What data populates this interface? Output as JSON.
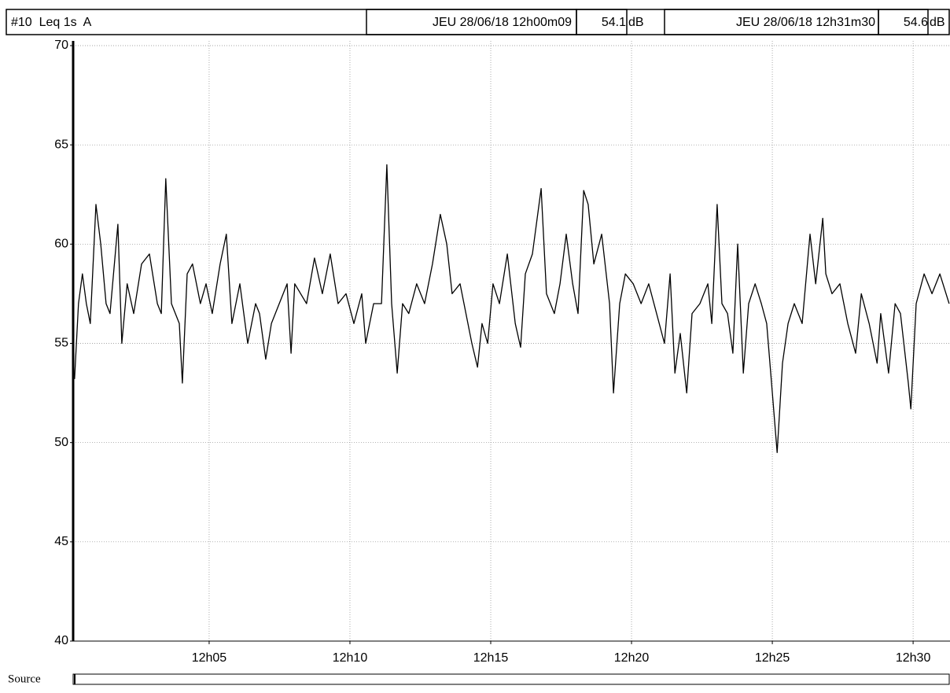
{
  "header": {
    "label": "#10  Leq 1s  A",
    "start_time": "JEU 28/06/18 12h00m09",
    "start_value": 54.1,
    "start_unit": "dB",
    "end_time": "JEU 28/06/18 12h31m30",
    "end_value": 54.6,
    "end_unit": "dB"
  },
  "footer": {
    "label": "Source"
  },
  "chart_data": {
    "type": "line",
    "color": "#000000",
    "grid": true,
    "xlim": [
      0.17,
      31.31
    ],
    "xticks": [
      {
        "value": 5,
        "label": "12h05"
      },
      {
        "value": 10,
        "label": "12h10"
      },
      {
        "value": 15,
        "label": "12h15"
      },
      {
        "value": 20,
        "label": "12h20"
      },
      {
        "value": 25,
        "label": "12h25"
      },
      {
        "value": 30,
        "label": "12h30"
      }
    ],
    "ylim": [
      40,
      70
    ],
    "yticks": [
      40,
      45,
      50,
      55,
      60,
      65,
      70
    ],
    "x": [
      0.22,
      0.36,
      0.5,
      0.64,
      0.78,
      0.98,
      1.15,
      1.34,
      1.48,
      1.76,
      1.9,
      2.09,
      2.32,
      2.6,
      2.88,
      3.16,
      3.3,
      3.46,
      3.66,
      3.94,
      4.05,
      4.22,
      4.41,
      4.69,
      4.89,
      5.11,
      5.39,
      5.61,
      5.81,
      6.09,
      6.37,
      6.65,
      6.79,
      7.01,
      7.21,
      7.49,
      7.77,
      7.91,
      8.04,
      8.46,
      8.74,
      9.02,
      9.3,
      9.58,
      9.86,
      10.14,
      10.42,
      10.56,
      10.84,
      11.12,
      11.31,
      11.48,
      11.68,
      11.87,
      12.09,
      12.37,
      12.65,
      12.93,
      13.21,
      13.44,
      13.63,
      13.91,
      14.19,
      14.33,
      14.53,
      14.69,
      14.89,
      15.08,
      15.31,
      15.59,
      15.87,
      16.06,
      16.23,
      16.48,
      16.79,
      16.98,
      17.26,
      17.46,
      17.68,
      17.91,
      18.1,
      18.3,
      18.46,
      18.66,
      18.94,
      19.22,
      19.36,
      19.58,
      19.78,
      20.06,
      20.34,
      20.61,
      20.89,
      21.17,
      21.37,
      21.54,
      21.73,
      21.96,
      22.15,
      22.43,
      22.71,
      22.85,
      23.04,
      23.21,
      23.41,
      23.6,
      23.77,
      23.97,
      24.16,
      24.39,
      24.61,
      24.8,
      25.0,
      25.17,
      25.36,
      25.56,
      25.78,
      26.06,
      26.34,
      26.54,
      26.79,
      26.9,
      27.12,
      27.4,
      27.68,
      27.96,
      28.16,
      28.44,
      28.72,
      28.85,
      29.13,
      29.36,
      29.55,
      29.83,
      29.92,
      30.11,
      30.39,
      30.67,
      30.95,
      31.28
    ],
    "values": [
      53.2,
      57,
      58.5,
      57,
      56,
      62,
      60,
      57,
      56.5,
      61,
      55,
      58,
      56.5,
      59,
      59.5,
      57,
      56.5,
      63.3,
      57,
      56,
      53,
      58.5,
      59,
      57,
      58,
      56.5,
      59,
      60.5,
      56,
      58,
      55,
      57,
      56.5,
      54.2,
      56,
      57,
      58,
      54.5,
      58,
      57,
      59.3,
      57.5,
      59.5,
      57,
      57.5,
      56,
      57.5,
      55,
      57,
      57,
      64,
      57,
      53.5,
      57,
      56.5,
      58,
      57,
      59,
      61.5,
      60,
      57.5,
      58,
      56,
      55,
      53.8,
      56,
      55,
      58,
      57,
      59.5,
      56,
      54.8,
      58.5,
      59.5,
      62.8,
      57.5,
      56.5,
      58,
      60.5,
      58,
      56.5,
      62.7,
      62,
      59,
      60.5,
      57,
      52.5,
      57,
      58.5,
      58,
      57,
      58,
      56.5,
      55,
      58.5,
      53.5,
      55.5,
      52.5,
      56.5,
      57,
      58,
      56,
      62,
      57,
      56.5,
      54.5,
      60,
      53.5,
      57,
      58,
      57,
      56,
      52.5,
      49.5,
      54,
      56,
      57,
      56,
      60.5,
      58,
      61.3,
      58.5,
      57.5,
      58,
      56,
      54.5,
      57.5,
      56,
      54,
      56.5,
      53.5,
      57,
      56.5,
      53,
      51.7,
      57,
      58.5,
      57.5,
      58.5,
      57
    ]
  }
}
